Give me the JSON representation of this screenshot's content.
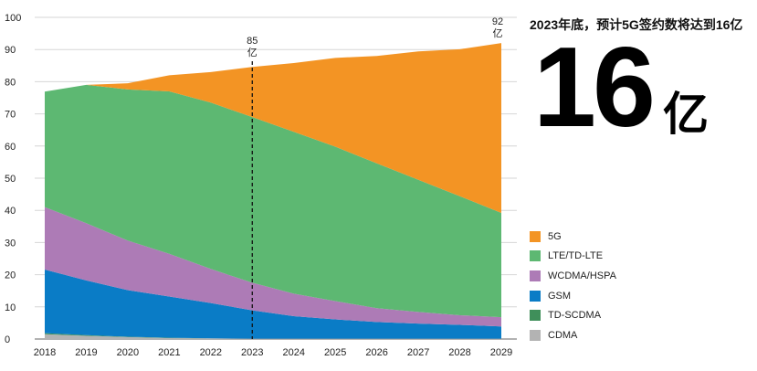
{
  "headline": "2023年底，预计5G签约数将达到16亿",
  "big_number": "16",
  "big_unit": "亿",
  "chart_data": {
    "type": "area",
    "stacked": true,
    "x": [
      2018,
      2019,
      2020,
      2021,
      2022,
      2023,
      2024,
      2025,
      2026,
      2027,
      2028,
      2029
    ],
    "ylim": [
      0,
      100
    ],
    "yticks": [
      0,
      10,
      20,
      30,
      40,
      50,
      60,
      70,
      80,
      90,
      100
    ],
    "grid": true,
    "legend_position": "right",
    "series": [
      {
        "name": "CDMA",
        "color": "#b3b3b3",
        "values": [
          1.5,
          1.0,
          0.6,
          0.3,
          0.2,
          0.1,
          0.1,
          0.1,
          0.1,
          0.1,
          0.1,
          0.1
        ]
      },
      {
        "name": "TD-SCDMA",
        "color": "#3f8f5a",
        "values": [
          0.3,
          0.2,
          0.1,
          0.1,
          0.0,
          0.0,
          0.0,
          0.0,
          0.0,
          0.0,
          0.0,
          0.0
        ]
      },
      {
        "name": "GSM",
        "color": "#0a7cc6",
        "values": [
          19.8,
          17.0,
          14.5,
          12.8,
          11.0,
          8.8,
          7.0,
          6.0,
          5.2,
          4.7,
          4.3,
          3.8
        ]
      },
      {
        "name": "WCDMA/HSPA",
        "color": "#ad7bb6",
        "values": [
          19.4,
          17.8,
          15.4,
          13.3,
          10.6,
          8.6,
          7.0,
          5.7,
          4.3,
          3.6,
          3.0,
          2.9
        ]
      },
      {
        "name": "LTE/TD-LTE",
        "color": "#5db872",
        "values": [
          35.9,
          43.0,
          47.0,
          50.5,
          51.7,
          51.5,
          50.3,
          48.0,
          45.0,
          41.1,
          37.0,
          32.4
        ]
      },
      {
        "name": "5G",
        "color": "#f39424",
        "values": [
          0.0,
          0.0,
          1.9,
          5.0,
          9.5,
          15.6,
          21.4,
          27.6,
          33.4,
          39.9,
          45.7,
          52.8
        ]
      }
    ],
    "legend_order": [
      "5G",
      "LTE/TD-LTE",
      "WCDMA/HSPA",
      "GSM",
      "TD-SCDMA",
      "CDMA"
    ],
    "annotations": [
      {
        "x": 2023,
        "lines": [
          "85",
          "亿"
        ],
        "dashed_line": true
      },
      {
        "x": 2029,
        "lines": [
          "92",
          "亿"
        ],
        "dashed_line": false
      }
    ]
  }
}
